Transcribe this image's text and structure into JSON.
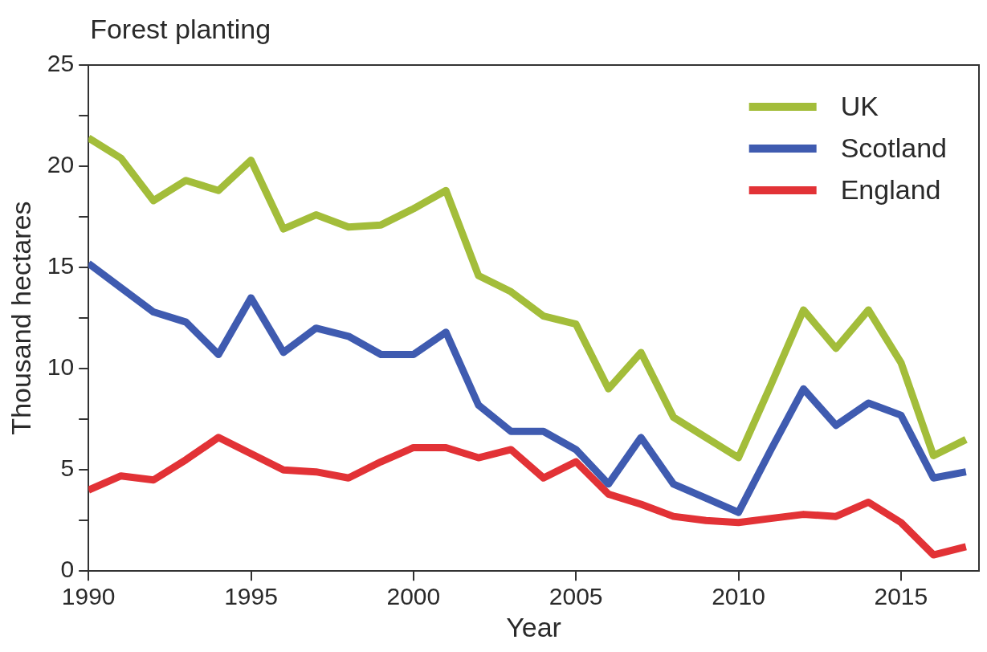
{
  "chart_data": {
    "type": "line",
    "title": "Forest planting",
    "xlabel": "Year",
    "ylabel": "Thousand hectares",
    "x": [
      1990,
      1991,
      1992,
      1993,
      1994,
      1995,
      1996,
      1997,
      1998,
      1999,
      2000,
      2001,
      2002,
      2003,
      2004,
      2005,
      2006,
      2007,
      2008,
      2009,
      2010,
      2011,
      2012,
      2013,
      2014,
      2015,
      2016,
      2017
    ],
    "series": [
      {
        "name": "UK",
        "color": "#a3bd3a",
        "values": [
          21.4,
          20.4,
          18.3,
          19.3,
          18.8,
          20.3,
          16.9,
          17.6,
          17.0,
          17.1,
          17.9,
          18.8,
          14.6,
          13.8,
          12.6,
          12.2,
          9.0,
          10.8,
          7.6,
          6.6,
          5.6,
          9.2,
          12.9,
          11.0,
          12.9,
          10.3,
          5.7,
          6.5
        ]
      },
      {
        "name": "Scotland",
        "color": "#3f5bb0",
        "values": [
          15.2,
          14.0,
          12.8,
          12.3,
          10.7,
          13.5,
          10.8,
          12.0,
          11.6,
          10.7,
          10.7,
          11.8,
          8.2,
          6.9,
          6.9,
          6.0,
          4.3,
          6.6,
          4.3,
          3.6,
          2.9,
          6.0,
          9.0,
          7.2,
          8.3,
          7.7,
          4.6,
          4.9
        ]
      },
      {
        "name": "England",
        "color": "#e23236",
        "values": [
          4.0,
          4.7,
          4.5,
          5.5,
          6.6,
          5.8,
          5.0,
          4.9,
          4.6,
          5.4,
          6.1,
          6.1,
          5.6,
          6.0,
          4.6,
          5.4,
          3.8,
          3.3,
          2.7,
          2.5,
          2.4,
          2.6,
          2.8,
          2.7,
          3.4,
          2.4,
          0.8,
          1.2
        ]
      }
    ],
    "xlim": [
      1990,
      2017.4
    ],
    "xticks": [
      1990,
      1995,
      2000,
      2005,
      2010,
      2015
    ],
    "ylim": [
      0,
      25
    ],
    "yticks": [
      0,
      {
        "value": 2.5,
        "label": null
      },
      5,
      {
        "value": 7.5,
        "label": null
      },
      10,
      {
        "value": 12.5,
        "label": null
      },
      15,
      {
        "value": 17.5,
        "label": null
      },
      20,
      {
        "value": 22.5,
        "label": null
      },
      25
    ],
    "grid": false,
    "legend": "top right",
    "marker": "none",
    "line_style": "solid"
  }
}
